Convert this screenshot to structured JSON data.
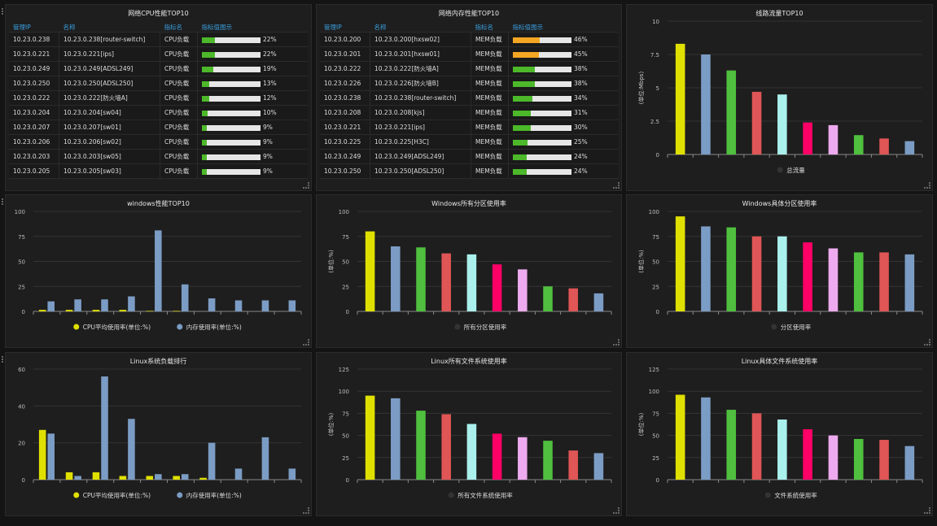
{
  "colors": {
    "yellow": "#e0e000",
    "blue": "#7b9cc4",
    "green": "#50bf3f",
    "red": "#e05555",
    "cyan": "#aaf0ec",
    "pink": "#ff0066",
    "lilac": "#eeaaee",
    "bar_green": "#4cb82a",
    "bar_orange": "#f5a623",
    "header_blue": "#3aa0e0"
  },
  "palette": [
    "#e0e000",
    "#7b9cc4",
    "#50bf3f",
    "#e05555",
    "#aaf0ec",
    "#ff0066",
    "#eeaaee",
    "#50bf3f",
    "#e05555",
    "#7b9cc4"
  ],
  "cpu_table": {
    "title": "网络CPU性能TOP10",
    "headers": [
      "管理IP",
      "名称",
      "指标名",
      "指标值图示"
    ],
    "rows": [
      {
        "ip": "10.23.0.238",
        "name": "10.23.0.238[router-switch]",
        "metric": "CPU负载",
        "value": 22,
        "label": "22%"
      },
      {
        "ip": "10.23.0.221",
        "name": "10.23.0.221[ips]",
        "metric": "CPU负载",
        "value": 22,
        "label": "22%"
      },
      {
        "ip": "10.23.0.249",
        "name": "10.23.0.249[ADSL249]",
        "metric": "CPU负载",
        "value": 19,
        "label": "19%"
      },
      {
        "ip": "10.23.0.250",
        "name": "10.23.0.250[ADSL250]",
        "metric": "CPU负载",
        "value": 13,
        "label": "13%"
      },
      {
        "ip": "10.23.0.222",
        "name": "10.23.0.222[防火墙A]",
        "metric": "CPU负载",
        "value": 12,
        "label": "12%"
      },
      {
        "ip": "10.23.0.204",
        "name": "10.23.0.204[sw04]",
        "metric": "CPU负载",
        "value": 10,
        "label": "10%"
      },
      {
        "ip": "10.23.0.207",
        "name": "10.23.0.207[sw01]",
        "metric": "CPU负载",
        "value": 9,
        "label": "9%"
      },
      {
        "ip": "10.23.0.206",
        "name": "10.23.0.206[sw02]",
        "metric": "CPU负载",
        "value": 9,
        "label": "9%"
      },
      {
        "ip": "10.23.0.203",
        "name": "10.23.0.203[sw05]",
        "metric": "CPU负载",
        "value": 9,
        "label": "9%"
      },
      {
        "ip": "10.23.0.205",
        "name": "10.23.0.205[sw03]",
        "metric": "CPU负载",
        "value": 9,
        "label": "9%"
      }
    ]
  },
  "mem_table": {
    "title": "网络内存性能TOP10",
    "headers": [
      "管理IP",
      "名称",
      "指标名",
      "指标值图示"
    ],
    "rows": [
      {
        "ip": "10.23.0.200",
        "name": "10.23.0.200[hxsw02]",
        "metric": "MEM负载",
        "value": 46,
        "label": "46%"
      },
      {
        "ip": "10.23.0.201",
        "name": "10.23.0.201[hxsw01]",
        "metric": "MEM负载",
        "value": 45,
        "label": "45%"
      },
      {
        "ip": "10.23.0.222",
        "name": "10.23.0.222[防火墙A]",
        "metric": "MEM负载",
        "value": 38,
        "label": "38%"
      },
      {
        "ip": "10.23.0.226",
        "name": "10.23.0.226[防火墙B]",
        "metric": "MEM负载",
        "value": 38,
        "label": "38%"
      },
      {
        "ip": "10.23.0.238",
        "name": "10.23.0.238[router-switch]",
        "metric": "MEM负载",
        "value": 34,
        "label": "34%"
      },
      {
        "ip": "10.23.0.208",
        "name": "10.23.0.208[kjs]",
        "metric": "MEM负载",
        "value": 31,
        "label": "31%"
      },
      {
        "ip": "10.23.0.221",
        "name": "10.23.0.221[ips]",
        "metric": "MEM负载",
        "value": 30,
        "label": "30%"
      },
      {
        "ip": "10.23.0.225",
        "name": "10.23.0.225[H3C]",
        "metric": "MEM负载",
        "value": 25,
        "label": "25%"
      },
      {
        "ip": "10.23.0.249",
        "name": "10.23.0.249[ADSL249]",
        "metric": "MEM负载",
        "value": 24,
        "label": "24%"
      },
      {
        "ip": "10.23.0.250",
        "name": "10.23.0.250[ADSL250]",
        "metric": "MEM负载",
        "value": 24,
        "label": "24%"
      }
    ]
  },
  "chart_data": [
    {
      "id": "traffic",
      "type": "bar",
      "title": "线路流量TOP10",
      "ylabel": "(单位:Mbps)",
      "ylim": [
        0,
        10
      ],
      "yticks": [
        "0",
        "2.5",
        "5",
        "7.5",
        "10"
      ],
      "grid": true,
      "legend": "bottom",
      "colorByPoint": true,
      "series": [
        {
          "name": "总流量",
          "values": [
            8.3,
            7.5,
            6.3,
            4.7,
            4.5,
            2.4,
            2.2,
            1.45,
            1.2,
            1.0
          ]
        }
      ]
    },
    {
      "id": "winperf",
      "type": "bar",
      "title": "windows性能TOP10",
      "ylabel": "",
      "ylim": [
        0,
        100
      ],
      "yticks": [
        "0",
        "25",
        "50",
        "75",
        "100"
      ],
      "grid": true,
      "legend": "bottom",
      "colorByPoint": false,
      "series": [
        {
          "name": "CPU平均使用率(单位:%)",
          "color": "#e0e000",
          "values": [
            1.5,
            1.5,
            1.5,
            1.5,
            0.5,
            0.5,
            0,
            0,
            0,
            0
          ]
        },
        {
          "name": "内存使用率(单位:%)",
          "color": "#7b9cc4",
          "values": [
            10,
            12,
            12,
            15,
            81,
            27,
            13,
            11,
            11,
            11
          ]
        }
      ]
    },
    {
      "id": "winall",
      "type": "bar",
      "title": "Windows所有分区使用率",
      "ylabel": "(单位:%)",
      "ylim": [
        0,
        100
      ],
      "yticks": [
        "0",
        "25",
        "50",
        "75",
        "100"
      ],
      "grid": true,
      "legend": "bottom",
      "colorByPoint": true,
      "series": [
        {
          "name": "所有分区使用率",
          "values": [
            80,
            65,
            64,
            58,
            57,
            47,
            42,
            25,
            23,
            18
          ]
        }
      ]
    },
    {
      "id": "winspec",
      "type": "bar",
      "title": "Windows具体分区使用率",
      "ylabel": "(单位:%)",
      "ylim": [
        0,
        100
      ],
      "yticks": [
        "0",
        "25",
        "50",
        "75",
        "100"
      ],
      "grid": true,
      "legend": "bottom",
      "colorByPoint": true,
      "series": [
        {
          "name": "分区使用率",
          "values": [
            95,
            85,
            84,
            75,
            75,
            69,
            63,
            59,
            59,
            57
          ]
        }
      ]
    },
    {
      "id": "linload",
      "type": "bar",
      "title": "Linux系统负载排行",
      "ylabel": "",
      "ylim": [
        0,
        60
      ],
      "yticks": [
        "0",
        "20",
        "40",
        "60"
      ],
      "grid": true,
      "legend": "bottom",
      "colorByPoint": false,
      "series": [
        {
          "name": "CPU平均使用率(单位:%)",
          "color": "#e0e000",
          "values": [
            27,
            4,
            4,
            2,
            2,
            2,
            1,
            0,
            0,
            0
          ]
        },
        {
          "name": "内存使用率(单位:%)",
          "color": "#7b9cc4",
          "values": [
            25,
            2,
            56,
            33,
            3,
            3,
            20,
            6,
            23,
            6
          ]
        }
      ]
    },
    {
      "id": "linall",
      "type": "bar",
      "title": "Linux所有文件系统使用率",
      "ylabel": "(单位:%)",
      "ylim": [
        0,
        125
      ],
      "yticks": [
        "0",
        "25",
        "50",
        "75",
        "100",
        "125"
      ],
      "grid": true,
      "legend": "bottom",
      "colorByPoint": true,
      "series": [
        {
          "name": "所有文件系统使用率",
          "values": [
            95,
            92,
            78,
            74,
            63,
            52,
            48,
            44,
            33,
            30
          ]
        }
      ]
    },
    {
      "id": "linspec",
      "type": "bar",
      "title": "Linux具体文件系统使用率",
      "ylabel": "(单位:%)",
      "ylim": [
        0,
        125
      ],
      "yticks": [
        "0",
        "25",
        "50",
        "75",
        "100",
        "125"
      ],
      "grid": true,
      "legend": "bottom",
      "colorByPoint": true,
      "series": [
        {
          "name": "文件系统使用率",
          "values": [
            96,
            93,
            79,
            75,
            68,
            57,
            50,
            46,
            45,
            38
          ]
        }
      ]
    }
  ]
}
